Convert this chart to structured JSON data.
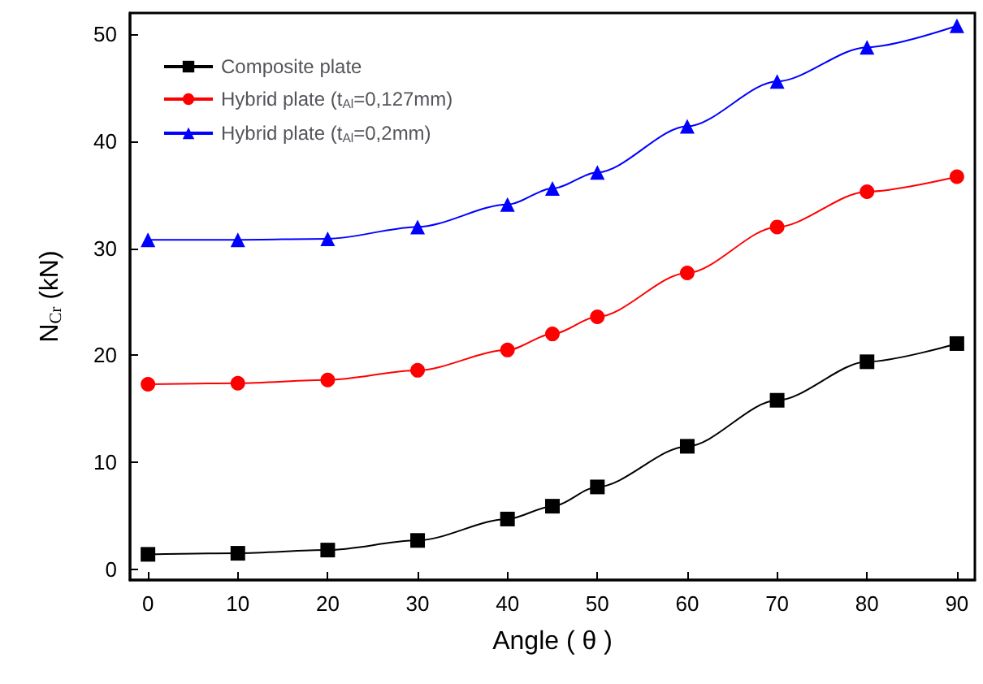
{
  "chart_data": {
    "type": "line",
    "xlabel": "Angle ( θ )",
    "ylabel": "N$_{Cr}$ (kN)",
    "x": [
      0,
      10,
      20,
      30,
      40,
      45,
      50,
      60,
      70,
      80,
      90
    ],
    "xlim": [
      -2,
      92
    ],
    "xticks": [
      0,
      10,
      20,
      30,
      40,
      50,
      60,
      70,
      80,
      90
    ],
    "ylim": [
      -1,
      52
    ],
    "yticks": [
      0,
      10,
      20,
      30,
      40,
      50
    ],
    "grid": false,
    "legend": "top left",
    "line_style": "solid",
    "series": [
      {
        "name": "Composite plate",
        "color": "#000000",
        "marker": "square",
        "values": [
          1.4,
          1.5,
          1.8,
          2.7,
          4.7,
          5.9,
          7.7,
          11.5,
          15.8,
          19.4,
          21.1
        ]
      },
      {
        "name": "Hybrid plate (t$_{Al}$=0,127mm)",
        "color": "#ff0000",
        "marker": "circle",
        "values": [
          17.3,
          17.4,
          17.7,
          18.6,
          20.5,
          22,
          23.6,
          27.7,
          32,
          35.3,
          36.7
        ]
      },
      {
        "name": "Hybrid plate (t$_{Al}$=0,2mm)",
        "color": "#0000ff",
        "marker": "triangle",
        "values": [
          30.8,
          30.8,
          30.9,
          32,
          34.1,
          35.6,
          37.1,
          41.4,
          45.6,
          48.8,
          50.8
        ]
      }
    ]
  }
}
